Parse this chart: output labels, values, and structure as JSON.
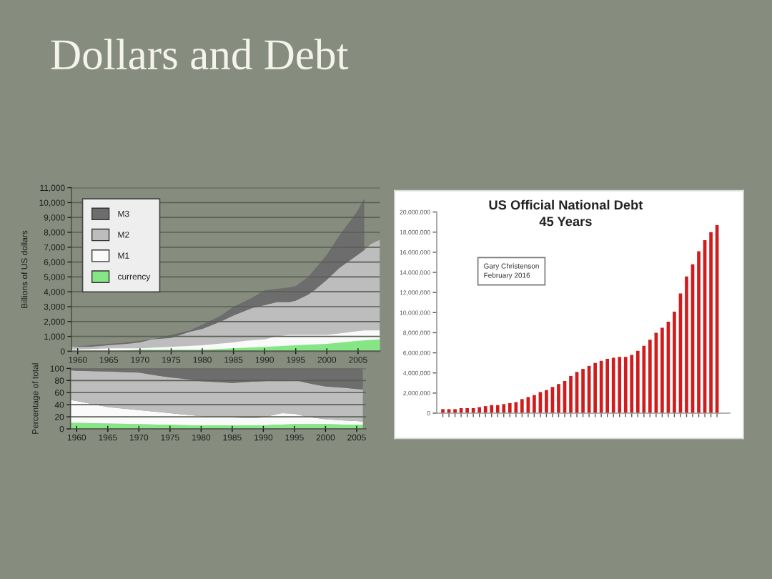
{
  "chart_data": [
    {
      "type": "area",
      "title": "Dollars and Debt",
      "ylabel": "Billions of US dollars",
      "xlim": [
        1959,
        2008.5
      ],
      "xticks": [
        1960,
        1965,
        1970,
        1975,
        1980,
        1985,
        1990,
        1995,
        2000,
        2005
      ],
      "ylim": [
        0,
        11000
      ],
      "yticks": [
        0,
        {
          "value": 1000,
          "label": "1,000"
        },
        {
          "value": 2000,
          "label": "2,000"
        },
        {
          "value": 3000,
          "label": "3,000"
        },
        {
          "value": 4000,
          "label": "4,000"
        },
        {
          "value": 5000,
          "label": "5,000"
        },
        {
          "value": 6000,
          "label": "6,000"
        },
        {
          "value": 7000,
          "label": "7,000"
        },
        {
          "value": 8000,
          "label": "8,000"
        },
        {
          "value": 9000,
          "label": "9,000"
        },
        {
          "value": 10000,
          "label": "10,000"
        },
        {
          "value": 11000,
          "label": "11,000"
        }
      ],
      "grid": "y",
      "legend": "top left",
      "series": [
        {
          "name": "currency",
          "color": "#86e686",
          "x": [
            1959,
            1965,
            1970,
            1975,
            1980,
            1985,
            1990,
            1995,
            2000,
            2005,
            2008.5
          ],
          "values": [
            0,
            0,
            100,
            100,
            100,
            200,
            300,
            400,
            500,
            700,
            800
          ]
        },
        {
          "name": "M1",
          "color": "#fafafa",
          "x": [
            1959,
            1965,
            1970,
            1975,
            1980,
            1985,
            1987,
            1990,
            1992,
            1994,
            1995,
            1997,
            2000,
            2002,
            2004,
            2006,
            2008.5
          ],
          "values": [
            100,
            200,
            200,
            300,
            400,
            600,
            700,
            800,
            1000,
            1100,
            1100,
            1100,
            1100,
            1200,
            1300,
            1400,
            1400
          ]
        },
        {
          "name": "M2",
          "color": "#bdbdbd",
          "x": [
            1959,
            1962,
            1965,
            1968,
            1970,
            1972,
            1975,
            1978,
            1980,
            1983,
            1985,
            1988,
            1990,
            1992,
            1994,
            1995,
            1997,
            1998,
            2000,
            2002,
            2004,
            2005,
            2006,
            2007,
            2008.5
          ],
          "values": [
            300,
            300,
            400,
            500,
            600,
            800,
            900,
            1300,
            1500,
            2000,
            2400,
            2900,
            3100,
            3300,
            3300,
            3400,
            3800,
            4100,
            4800,
            5600,
            6200,
            6500,
            6800,
            7200,
            7500
          ]
        },
        {
          "name": "M3",
          "color": "#6d6d6d",
          "x": [
            1959,
            1962,
            1965,
            1968,
            1970,
            1972,
            1975,
            1978,
            1980,
            1983,
            1985,
            1988,
            1990,
            1992,
            1994,
            1995,
            1997,
            1998,
            2000,
            2002,
            2004,
            2005,
            2006
          ],
          "values": [
            300,
            400,
            500,
            600,
            700,
            800,
            1100,
            1400,
            1800,
            2400,
            3000,
            3600,
            4100,
            4200,
            4300,
            4400,
            5000,
            5500,
            6500,
            7800,
            8900,
            9500,
            10300
          ]
        }
      ]
    },
    {
      "type": "area",
      "stacked": true,
      "ylabel": "Percentage of total",
      "xlim": [
        1959,
        2006.5
      ],
      "xticks": [
        1960,
        1965,
        1970,
        1975,
        1980,
        1985,
        1990,
        1995,
        2000,
        2005
      ],
      "ylim": [
        0,
        100
      ],
      "yticks": [
        0,
        20,
        40,
        60,
        80,
        100
      ],
      "grid": "y",
      "x": [
        1959,
        1960,
        1965,
        1970,
        1973,
        1975,
        1978,
        1980,
        1983,
        1985,
        1988,
        1990,
        1992,
        1993,
        1995,
        1997,
        2000,
        2003,
        2005,
        2006
      ],
      "series": [
        {
          "color": "#86e686",
          "values": [
            10,
            10,
            9,
            8,
            7,
            7,
            6,
            6,
            6,
            6,
            6,
            6,
            7,
            7,
            8,
            8,
            8,
            7,
            7,
            7
          ]
        },
        {
          "color": "#fafafa",
          "values": [
            38,
            36,
            27,
            23,
            21,
            19,
            17,
            15,
            13,
            13,
            12,
            13,
            17,
            19,
            17,
            12,
            8,
            7,
            6,
            5
          ]
        },
        {
          "color": "#bdbdbd",
          "values": [
            49,
            50,
            59,
            62,
            60,
            59,
            59,
            58,
            58,
            57,
            60,
            60,
            56,
            54,
            56,
            56,
            54,
            54,
            53,
            53
          ]
        },
        {
          "color": "#6d6d6d",
          "values": [
            3,
            4,
            5,
            7,
            12,
            15,
            18,
            21,
            23,
            24,
            22,
            21,
            20,
            20,
            19,
            24,
            30,
            32,
            34,
            35
          ]
        }
      ]
    },
    {
      "type": "bar",
      "title": "US Official National Debt\n45 Years",
      "categories": [
        null,
        null,
        null,
        null,
        null,
        null,
        null,
        null,
        null,
        null,
        null,
        null,
        null,
        null,
        null,
        null,
        null,
        null,
        null,
        null,
        null,
        null,
        null,
        null,
        null,
        null,
        null,
        null,
        null,
        null,
        null,
        null,
        null,
        null,
        null,
        null,
        null,
        null,
        null,
        null,
        null,
        null,
        null,
        null,
        null,
        null
      ],
      "values": [
        400000,
        400000,
        400000,
        500000,
        500000,
        500000,
        600000,
        700000,
        800000,
        800000,
        900000,
        1000000,
        1100000,
        1400000,
        1600000,
        1800000,
        2100000,
        2300000,
        2600000,
        2900000,
        3200000,
        3700000,
        4100000,
        4400000,
        4700000,
        5000000,
        5200000,
        5400000,
        5500000,
        5600000,
        5600000,
        5800000,
        6200000,
        6700000,
        7300000,
        8000000,
        8500000,
        9100000,
        10100000,
        11900000,
        13600000,
        14800000,
        16100000,
        17200000,
        18000000,
        18700000
      ],
      "color": "#d01c1c",
      "ylim": [
        0,
        20000000
      ],
      "yticks": [
        0,
        {
          "value": 2000000,
          "label": "2,000,000"
        },
        {
          "value": 4000000,
          "label": "4,000,000"
        },
        {
          "value": 6000000,
          "label": "6,000,000"
        },
        {
          "value": 8000000,
          "label": "8,000,000"
        },
        {
          "value": 10000000,
          "label": "10,000,000"
        },
        {
          "value": 12000000,
          "label": "12,000,000"
        },
        {
          "value": 14000000,
          "label": "14,000,000"
        },
        {
          "value": 16000000,
          "label": "16,000,000"
        },
        {
          "value": 18000000,
          "label": "18,000,000"
        },
        {
          "value": 20000000,
          "label": "20,000,000"
        }
      ],
      "annotations": [
        "Gary Christenson\nFebruary 2016"
      ]
    }
  ]
}
